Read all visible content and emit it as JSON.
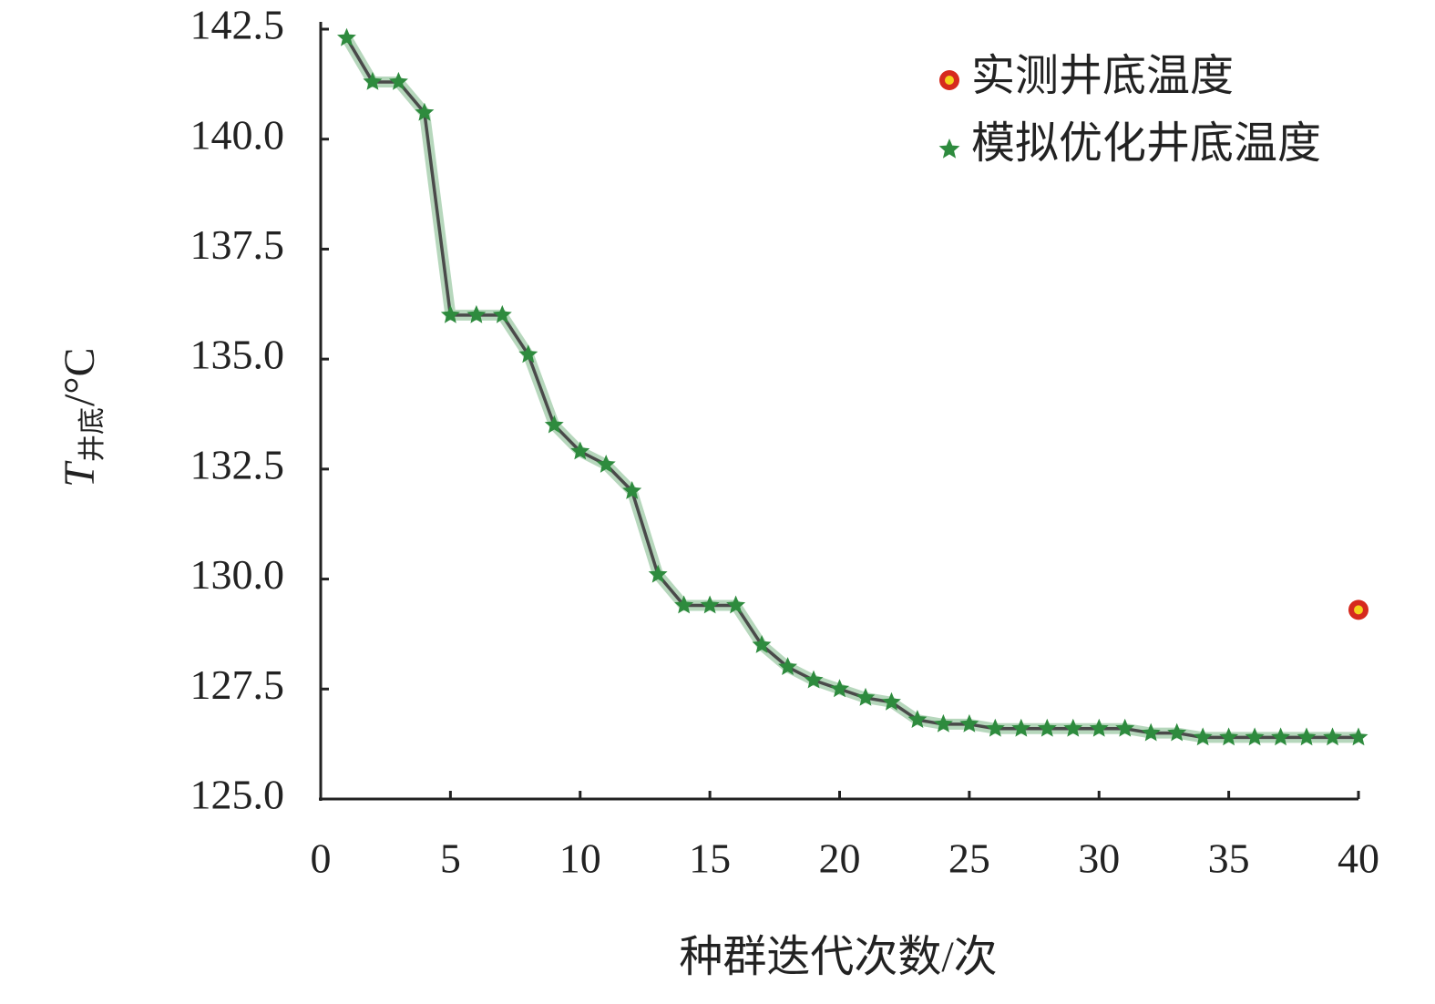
{
  "chart_data": {
    "type": "line",
    "x_label": "种群迭代次数/次",
    "y_label": {
      "symbol": "T",
      "subscript": "井底",
      "unit": "/°C"
    },
    "xlim": [
      0,
      40
    ],
    "xticks": [
      0,
      5,
      10,
      15,
      20,
      25,
      30,
      35,
      40
    ],
    "ylim": [
      125,
      142.5
    ],
    "yticks": [
      {
        "value": 125,
        "label": "125.0"
      },
      127.5,
      {
        "value": 130,
        "label": "130.0"
      },
      132.5,
      {
        "value": 135,
        "label": "135.0"
      },
      137.5,
      {
        "value": 140,
        "label": "140.0"
      },
      142.5
    ],
    "grid": false,
    "legend": "upper right",
    "series": [
      {
        "name": "实测井底温度",
        "color": "#d62a1e",
        "marker": "circle",
        "x": [
          40
        ],
        "values": [
          129.3
        ]
      },
      {
        "name": "模拟优化井底温度",
        "color": "#2e8b3e",
        "line_color": "#4a4a4a",
        "marker": "star",
        "x": [
          1,
          2,
          3,
          4,
          5,
          6,
          7,
          8,
          9,
          10,
          11,
          12,
          13,
          14,
          15,
          16,
          17,
          18,
          19,
          20,
          21,
          22,
          23,
          24,
          25,
          26,
          27,
          28,
          29,
          30,
          31,
          32,
          33,
          34,
          35,
          36,
          37,
          38,
          39,
          40
        ],
        "values": [
          142.3,
          141.3,
          141.3,
          140.6,
          136.0,
          136.0,
          136.0,
          135.1,
          133.5,
          132.9,
          132.6,
          132.0,
          130.1,
          129.4,
          129.4,
          129.4,
          128.5,
          128.0,
          127.7,
          127.5,
          127.3,
          127.2,
          126.8,
          126.7,
          126.7,
          126.6,
          126.6,
          126.6,
          126.6,
          126.6,
          126.6,
          126.5,
          126.5,
          126.4,
          126.4,
          126.4,
          126.4,
          126.4,
          126.4,
          126.4
        ]
      }
    ]
  }
}
